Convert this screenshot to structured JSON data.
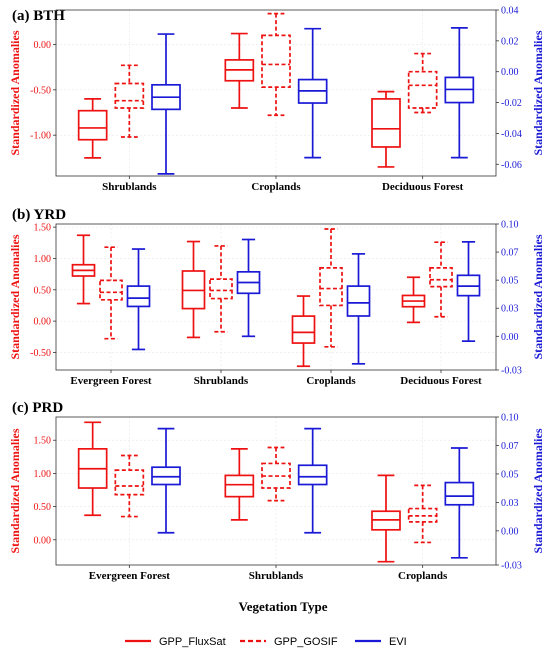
{
  "chart_data": {
    "type": "boxplot",
    "x_axis_label": "Vegetation Type",
    "legend": [
      {
        "name": "GPP_FluxSat",
        "color": "#ee1111",
        "style": "solid"
      },
      {
        "name": "GPP_GOSIF",
        "color": "#ee1111",
        "style": "dashed"
      },
      {
        "name": "EVI",
        "color": "#1a1ad6",
        "style": "solid"
      }
    ],
    "panels": [
      {
        "title": "(a) BTH",
        "ylabel_left": "Standardized Anomalies",
        "ylabel_right": "Standardized Anomalies",
        "left_ylim": [
          -1.45,
          0.38
        ],
        "left_ticks": [
          "-1.00",
          "-0.50",
          "0.00"
        ],
        "left_tick_values": [
          -1.0,
          -0.5,
          0.0
        ],
        "right_ylim": [
          -0.0676,
          0.04
        ],
        "right_ticks": [
          "-0.06",
          "-0.04",
          "-0.02",
          "0.00",
          "0.02",
          "0.04"
        ],
        "right_tick_values": [
          -0.06,
          -0.04,
          -0.02,
          0.0,
          0.02,
          0.04
        ],
        "categories": [
          "Shrublands",
          "Croplands",
          "Deciduous Forest"
        ],
        "boxes": [
          [
            {
              "series": "GPP_FluxSat",
              "axis": "left",
              "min": -1.25,
              "q1": -1.05,
              "median": -0.92,
              "q3": -0.73,
              "max": -0.6
            },
            {
              "series": "GPP_GOSIF",
              "axis": "left",
              "min": -1.02,
              "q1": -0.7,
              "median": -0.62,
              "q3": -0.43,
              "max": -0.23
            },
            {
              "series": "EVI",
              "axis": "right",
              "min": -0.0662,
              "q1": -0.0244,
              "median": -0.0165,
              "q3": -0.0085,
              "max": 0.0244
            }
          ],
          [
            {
              "series": "GPP_FluxSat",
              "axis": "left",
              "min": -0.7,
              "q1": -0.4,
              "median": -0.28,
              "q3": -0.17,
              "max": 0.12
            },
            {
              "series": "GPP_GOSIF",
              "axis": "left",
              "min": -0.78,
              "q1": -0.47,
              "median": -0.22,
              "q3": 0.1,
              "max": 0.34
            },
            {
              "series": "EVI",
              "axis": "right",
              "min": -0.0557,
              "q1": -0.0203,
              "median": -0.0124,
              "q3": -0.0051,
              "max": 0.0279
            }
          ],
          [
            {
              "series": "GPP_FluxSat",
              "axis": "left",
              "min": -1.35,
              "q1": -1.13,
              "median": -0.93,
              "q3": -0.6,
              "max": -0.52
            },
            {
              "series": "GPP_GOSIF",
              "axis": "left",
              "min": -0.75,
              "q1": -0.7,
              "median": -0.45,
              "q3": -0.3,
              "max": -0.1
            },
            {
              "series": "EVI",
              "axis": "right",
              "min": -0.0557,
              "q1": -0.02,
              "median": -0.0115,
              "q3": -0.0037,
              "max": 0.0284
            }
          ]
        ]
      },
      {
        "title": "(b) YRD",
        "ylabel_left": "Standardized Anomalies",
        "ylabel_right": "Standardized Anomalies",
        "left_ylim": [
          -0.78,
          1.55
        ],
        "left_ticks": [
          "-0.50",
          "0.00",
          "0.50",
          "1.00",
          "1.50"
        ],
        "left_tick_values": [
          -0.5,
          0.0,
          0.5,
          1.0,
          1.5
        ],
        "right_ylim": [
          -0.03,
          0.1
        ],
        "right_ticks": [
          "-0.03",
          "0.00",
          "0.03",
          "0.05",
          "0.07",
          "0.10"
        ],
        "right_tick_values": [
          -0.03,
          0.0,
          0.025,
          0.05,
          0.075,
          0.1
        ],
        "categories": [
          "Evergreen Forest",
          "Shrublands",
          "Croplands",
          "Deciduous Forest"
        ],
        "boxes": [
          [
            {
              "series": "GPP_FluxSat",
              "axis": "left",
              "min": 0.28,
              "q1": 0.72,
              "median": 0.81,
              "q3": 0.9,
              "max": 1.37
            },
            {
              "series": "GPP_GOSIF",
              "axis": "left",
              "min": -0.28,
              "q1": 0.34,
              "median": 0.46,
              "q3": 0.65,
              "max": 1.18
            },
            {
              "series": "EVI",
              "axis": "right",
              "min": -0.0117,
              "q1": 0.0266,
              "median": 0.034,
              "q3": 0.0447,
              "max": 0.0777
            }
          ],
          [
            {
              "series": "GPP_FluxSat",
              "axis": "left",
              "min": -0.26,
              "q1": 0.2,
              "median": 0.49,
              "q3": 0.8,
              "max": 1.27
            },
            {
              "series": "GPP_GOSIF",
              "axis": "left",
              "min": -0.17,
              "q1": 0.36,
              "median": 0.49,
              "q3": 0.67,
              "max": 1.2
            },
            {
              "series": "EVI",
              "axis": "right",
              "min": 0.0,
              "q1": 0.0383,
              "median": 0.0479,
              "q3": 0.0574,
              "max": 0.0862
            }
          ],
          [
            {
              "series": "GPP_FluxSat",
              "axis": "left",
              "min": -0.72,
              "q1": -0.35,
              "median": -0.18,
              "q3": 0.08,
              "max": 0.4
            },
            {
              "series": "GPP_GOSIF",
              "axis": "left",
              "min": -0.41,
              "q1": 0.25,
              "median": 0.52,
              "q3": 0.85,
              "max": 1.47
            },
            {
              "series": "EVI",
              "axis": "right",
              "min": -0.0245,
              "q1": 0.0181,
              "median": 0.0298,
              "q3": 0.0447,
              "max": 0.0734
            }
          ],
          [
            {
              "series": "GPP_FluxSat",
              "axis": "left",
              "min": -0.02,
              "q1": 0.23,
              "median": 0.32,
              "q3": 0.41,
              "max": 0.7
            },
            {
              "series": "GPP_GOSIF",
              "axis": "left",
              "min": 0.07,
              "q1": 0.55,
              "median": 0.66,
              "q3": 0.85,
              "max": 1.26
            },
            {
              "series": "EVI",
              "axis": "right",
              "min": -0.0043,
              "q1": 0.0362,
              "median": 0.0447,
              "q3": 0.0543,
              "max": 0.0841
            }
          ]
        ]
      },
      {
        "title": "(c) PRD",
        "ylabel_left": "Standardized Anomalies",
        "ylabel_right": "Standardized Anomalies",
        "left_ylim": [
          -0.38,
          1.85
        ],
        "left_ticks": [
          "0.00",
          "0.50",
          "1.00",
          "1.50"
        ],
        "left_tick_values": [
          0.0,
          0.5,
          1.0,
          1.5
        ],
        "right_ylim": [
          -0.03,
          0.1
        ],
        "right_ticks": [
          "-0.03",
          "0.00",
          "0.03",
          "0.05",
          "0.07",
          "0.10"
        ],
        "right_tick_values": [
          -0.03,
          0.0,
          0.025,
          0.05,
          0.075,
          0.1
        ],
        "categories": [
          "Evergreen Forest",
          "Shrublands",
          "Croplands"
        ],
        "boxes": [
          [
            {
              "series": "GPP_FluxSat",
              "axis": "left",
              "min": 0.37,
              "q1": 0.78,
              "median": 1.07,
              "q3": 1.37,
              "max": 1.77
            },
            {
              "series": "GPP_GOSIF",
              "axis": "left",
              "min": 0.35,
              "q1": 0.68,
              "median": 0.81,
              "q3": 1.05,
              "max": 1.27
            },
            {
              "series": "EVI",
              "axis": "right",
              "min": -0.0017,
              "q1": 0.0407,
              "median": 0.0475,
              "q3": 0.0559,
              "max": 0.0898
            }
          ],
          [
            {
              "series": "GPP_FluxSat",
              "axis": "left",
              "min": 0.3,
              "q1": 0.65,
              "median": 0.83,
              "q3": 0.97,
              "max": 1.37
            },
            {
              "series": "GPP_GOSIF",
              "axis": "left",
              "min": 0.59,
              "q1": 0.78,
              "median": 0.96,
              "q3": 1.15,
              "max": 1.39
            },
            {
              "series": "EVI",
              "axis": "right",
              "min": -0.0017,
              "q1": 0.0407,
              "median": 0.0475,
              "q3": 0.0576,
              "max": 0.0898
            }
          ],
          [
            {
              "series": "GPP_FluxSat",
              "axis": "left",
              "min": -0.33,
              "q1": 0.15,
              "median": 0.3,
              "q3": 0.43,
              "max": 0.97
            },
            {
              "series": "GPP_GOSIF",
              "axis": "left",
              "min": -0.04,
              "q1": 0.27,
              "median": 0.36,
              "q3": 0.47,
              "max": 0.82
            },
            {
              "series": "EVI",
              "axis": "right",
              "min": -0.0237,
              "q1": 0.0229,
              "median": 0.0305,
              "q3": 0.0424,
              "max": 0.0728
            }
          ]
        ]
      }
    ]
  }
}
